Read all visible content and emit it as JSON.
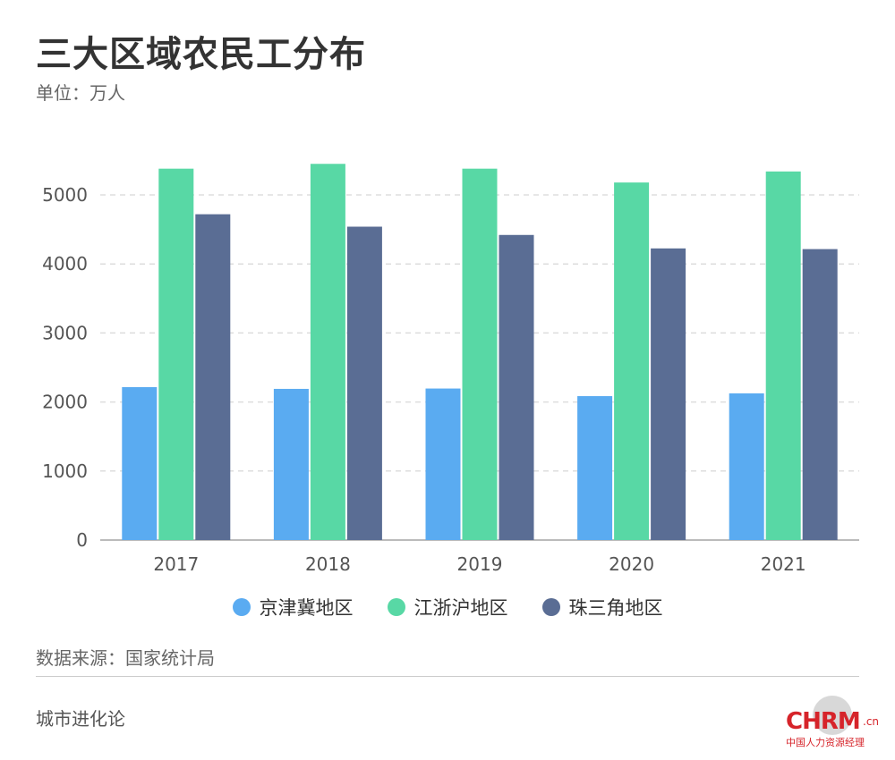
{
  "header": {
    "title": "三大区域农民工分布",
    "unit": "单位：万人"
  },
  "colors": {
    "京津冀地区": "#5aabf1",
    "江浙沪地区": "#58d8a5",
    "珠三角地区": "#5a6d94",
    "grid": "#dddddd",
    "axis": "#bbbbbb"
  },
  "chart_data": {
    "type": "bar",
    "categories": [
      "2017",
      "2018",
      "2019",
      "2020",
      "2021"
    ],
    "series": [
      {
        "name": "京津冀地区",
        "values": [
          2215,
          2190,
          2195,
          2085,
          2125
        ]
      },
      {
        "name": "江浙沪地区",
        "values": [
          5380,
          5450,
          5380,
          5180,
          5340
        ]
      },
      {
        "name": "珠三角地区",
        "values": [
          4720,
          4540,
          4420,
          4225,
          4215
        ]
      }
    ],
    "ylim": [
      0,
      5500
    ],
    "yticks": [
      0,
      1000,
      2000,
      3000,
      4000,
      5000
    ],
    "grid": true,
    "legend_position": "bottom"
  },
  "legend": {
    "items": [
      "京津冀地区",
      "江浙沪地区",
      "珠三角地区"
    ]
  },
  "footer": {
    "source": "数据来源：国家统计局",
    "brand": "城市进化论"
  },
  "logo": {
    "text": "CHRM",
    "suffix": ".cn",
    "subtitle": "中国人力资源经理"
  }
}
